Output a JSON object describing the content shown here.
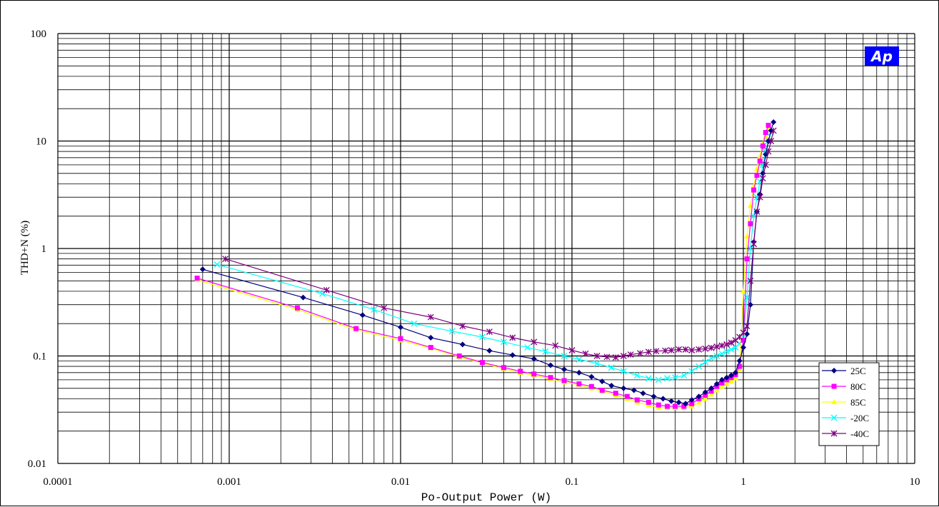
{
  "chart_data": {
    "type": "line",
    "xlabel": "Po-Output Power (W)",
    "ylabel": "THD+N (%)",
    "xscale": "log",
    "yscale": "log",
    "xlim": [
      0.0001,
      10
    ],
    "ylim": [
      0.01,
      100
    ],
    "x_tick_labels": [
      "0.0001",
      "0.001",
      "0.01",
      "0.1",
      "1",
      "10"
    ],
    "y_tick_labels": [
      "0.01",
      "0.1",
      "1",
      "10",
      "100"
    ],
    "grid": true,
    "legend_position": "bottom-right",
    "logo_text": "Ap",
    "series": [
      {
        "name": "25C",
        "color": "#000080",
        "marker": "diamond",
        "points": [
          [
            0.0007,
            0.64
          ],
          [
            0.0027,
            0.35
          ],
          [
            0.006,
            0.24
          ],
          [
            0.01,
            0.185
          ],
          [
            0.015,
            0.148
          ],
          [
            0.023,
            0.128
          ],
          [
            0.033,
            0.112
          ],
          [
            0.045,
            0.102
          ],
          [
            0.06,
            0.094
          ],
          [
            0.075,
            0.082
          ],
          [
            0.09,
            0.075
          ],
          [
            0.11,
            0.07
          ],
          [
            0.13,
            0.064
          ],
          [
            0.15,
            0.058
          ],
          [
            0.17,
            0.053
          ],
          [
            0.2,
            0.05
          ],
          [
            0.23,
            0.048
          ],
          [
            0.26,
            0.045
          ],
          [
            0.3,
            0.042
          ],
          [
            0.34,
            0.04
          ],
          [
            0.38,
            0.038
          ],
          [
            0.42,
            0.037
          ],
          [
            0.46,
            0.036
          ],
          [
            0.5,
            0.039
          ],
          [
            0.55,
            0.042
          ],
          [
            0.6,
            0.046
          ],
          [
            0.65,
            0.05
          ],
          [
            0.7,
            0.055
          ],
          [
            0.75,
            0.06
          ],
          [
            0.8,
            0.063
          ],
          [
            0.85,
            0.066
          ],
          [
            0.9,
            0.07
          ],
          [
            0.95,
            0.09
          ],
          [
            1.0,
            0.12
          ],
          [
            1.05,
            0.16
          ],
          [
            1.1,
            0.3
          ],
          [
            1.15,
            1.15
          ],
          [
            1.2,
            2.2
          ],
          [
            1.25,
            3.2
          ],
          [
            1.3,
            5.0
          ],
          [
            1.35,
            7.5
          ],
          [
            1.4,
            10.0
          ],
          [
            1.45,
            12.5
          ],
          [
            1.5,
            15.0
          ]
        ]
      },
      {
        "name": "80C",
        "color": "#ff00ff",
        "marker": "square",
        "points": [
          [
            0.00065,
            0.53
          ],
          [
            0.0025,
            0.28
          ],
          [
            0.0055,
            0.18
          ],
          [
            0.01,
            0.145
          ],
          [
            0.015,
            0.12
          ],
          [
            0.022,
            0.1
          ],
          [
            0.03,
            0.087
          ],
          [
            0.04,
            0.078
          ],
          [
            0.05,
            0.072
          ],
          [
            0.06,
            0.068
          ],
          [
            0.075,
            0.063
          ],
          [
            0.09,
            0.059
          ],
          [
            0.11,
            0.055
          ],
          [
            0.13,
            0.052
          ],
          [
            0.15,
            0.048
          ],
          [
            0.18,
            0.045
          ],
          [
            0.21,
            0.042
          ],
          [
            0.24,
            0.039
          ],
          [
            0.28,
            0.037
          ],
          [
            0.32,
            0.035
          ],
          [
            0.36,
            0.034
          ],
          [
            0.4,
            0.034
          ],
          [
            0.45,
            0.034
          ],
          [
            0.5,
            0.036
          ],
          [
            0.55,
            0.04
          ],
          [
            0.6,
            0.043
          ],
          [
            0.65,
            0.047
          ],
          [
            0.7,
            0.052
          ],
          [
            0.75,
            0.056
          ],
          [
            0.8,
            0.06
          ],
          [
            0.85,
            0.063
          ],
          [
            0.9,
            0.067
          ],
          [
            0.95,
            0.08
          ],
          [
            1.0,
            0.14
          ],
          [
            1.05,
            0.8
          ],
          [
            1.1,
            1.7
          ],
          [
            1.15,
            3.5
          ],
          [
            1.2,
            4.8
          ],
          [
            1.25,
            6.5
          ],
          [
            1.3,
            9.0
          ],
          [
            1.35,
            12.0
          ],
          [
            1.4,
            14.0
          ]
        ]
      },
      {
        "name": "85C",
        "color": "#ffff00",
        "marker": "triangle",
        "points": [
          [
            0.00065,
            0.51
          ],
          [
            0.0025,
            0.27
          ],
          [
            0.0055,
            0.175
          ],
          [
            0.01,
            0.14
          ],
          [
            0.015,
            0.118
          ],
          [
            0.022,
            0.098
          ],
          [
            0.03,
            0.086
          ],
          [
            0.04,
            0.076
          ],
          [
            0.05,
            0.07
          ],
          [
            0.06,
            0.066
          ],
          [
            0.075,
            0.061
          ],
          [
            0.09,
            0.057
          ],
          [
            0.11,
            0.054
          ],
          [
            0.13,
            0.05
          ],
          [
            0.15,
            0.047
          ],
          [
            0.18,
            0.043
          ],
          [
            0.21,
            0.04
          ],
          [
            0.24,
            0.037
          ],
          [
            0.28,
            0.035
          ],
          [
            0.32,
            0.033
          ],
          [
            0.36,
            0.033
          ],
          [
            0.4,
            0.033
          ],
          [
            0.45,
            0.033
          ],
          [
            0.5,
            0.034
          ],
          [
            0.55,
            0.037
          ],
          [
            0.6,
            0.04
          ],
          [
            0.65,
            0.044
          ],
          [
            0.7,
            0.048
          ],
          [
            0.75,
            0.052
          ],
          [
            0.8,
            0.055
          ],
          [
            0.85,
            0.058
          ],
          [
            0.9,
            0.062
          ],
          [
            0.95,
            0.075
          ],
          [
            1.0,
            0.4
          ],
          [
            1.05,
            1.3
          ],
          [
            1.1,
            2.5
          ],
          [
            1.15,
            3.8
          ],
          [
            1.2,
            5.5
          ],
          [
            1.25,
            7.2
          ],
          [
            1.3,
            9.5
          ],
          [
            1.35,
            11.0
          ],
          [
            1.4,
            13.0
          ]
        ]
      },
      {
        "name": "-20C",
        "color": "#00ffff",
        "marker": "x",
        "points": [
          [
            0.00085,
            0.71
          ],
          [
            0.0035,
            0.38
          ],
          [
            0.007,
            0.27
          ],
          [
            0.012,
            0.2
          ],
          [
            0.02,
            0.17
          ],
          [
            0.03,
            0.15
          ],
          [
            0.04,
            0.135
          ],
          [
            0.055,
            0.12
          ],
          [
            0.07,
            0.11
          ],
          [
            0.09,
            0.1
          ],
          [
            0.11,
            0.093
          ],
          [
            0.14,
            0.085
          ],
          [
            0.17,
            0.078
          ],
          [
            0.2,
            0.072
          ],
          [
            0.24,
            0.066
          ],
          [
            0.28,
            0.062
          ],
          [
            0.32,
            0.06
          ],
          [
            0.36,
            0.062
          ],
          [
            0.4,
            0.063
          ],
          [
            0.45,
            0.066
          ],
          [
            0.5,
            0.072
          ],
          [
            0.55,
            0.08
          ],
          [
            0.6,
            0.088
          ],
          [
            0.65,
            0.095
          ],
          [
            0.7,
            0.1
          ],
          [
            0.75,
            0.105
          ],
          [
            0.8,
            0.11
          ],
          [
            0.85,
            0.115
          ],
          [
            0.9,
            0.12
          ],
          [
            0.95,
            0.13
          ],
          [
            1.0,
            0.15
          ],
          [
            1.05,
            0.35
          ],
          [
            1.1,
            1.0
          ],
          [
            1.15,
            2.0
          ],
          [
            1.2,
            3.0
          ],
          [
            1.25,
            4.2
          ],
          [
            1.3,
            6.0
          ],
          [
            1.35,
            8.0
          ],
          [
            1.4,
            10.0
          ],
          [
            1.45,
            12.0
          ]
        ]
      },
      {
        "name": "-40C",
        "color": "#800080",
        "marker": "asterisk",
        "points": [
          [
            0.00095,
            0.8
          ],
          [
            0.0037,
            0.41
          ],
          [
            0.008,
            0.28
          ],
          [
            0.015,
            0.23
          ],
          [
            0.023,
            0.19
          ],
          [
            0.033,
            0.168
          ],
          [
            0.045,
            0.148
          ],
          [
            0.06,
            0.135
          ],
          [
            0.08,
            0.125
          ],
          [
            0.1,
            0.113
          ],
          [
            0.12,
            0.105
          ],
          [
            0.14,
            0.1
          ],
          [
            0.16,
            0.098
          ],
          [
            0.18,
            0.097
          ],
          [
            0.2,
            0.1
          ],
          [
            0.22,
            0.103
          ],
          [
            0.25,
            0.106
          ],
          [
            0.28,
            0.109
          ],
          [
            0.31,
            0.111
          ],
          [
            0.35,
            0.112
          ],
          [
            0.38,
            0.113
          ],
          [
            0.42,
            0.115
          ],
          [
            0.46,
            0.115
          ],
          [
            0.5,
            0.113
          ],
          [
            0.55,
            0.115
          ],
          [
            0.6,
            0.117
          ],
          [
            0.65,
            0.119
          ],
          [
            0.7,
            0.122
          ],
          [
            0.75,
            0.125
          ],
          [
            0.8,
            0.128
          ],
          [
            0.85,
            0.133
          ],
          [
            0.9,
            0.14
          ],
          [
            0.95,
            0.15
          ],
          [
            1.0,
            0.165
          ],
          [
            1.05,
            0.19
          ],
          [
            1.1,
            0.5
          ],
          [
            1.15,
            1.1
          ],
          [
            1.2,
            2.2
          ],
          [
            1.25,
            3.0
          ],
          [
            1.3,
            4.5
          ],
          [
            1.35,
            6.0
          ],
          [
            1.4,
            8.0
          ],
          [
            1.45,
            10.0
          ],
          [
            1.5,
            12.5
          ]
        ]
      }
    ]
  }
}
